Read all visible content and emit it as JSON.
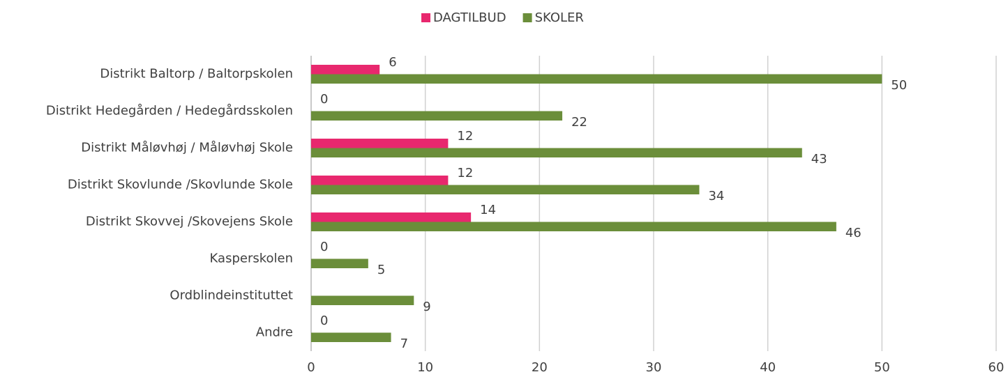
{
  "chart_data": {
    "type": "bar",
    "orientation": "horizontal",
    "categories": [
      "Distrikt Baltorp / Baltorpskolen",
      "Distrikt Hedegården / Hedegårdsskolen",
      "Distrikt Måløvhøj / Måløvhøj Skole",
      "Distrikt Skovlunde /Skovlunde Skole",
      "Distrikt Skovvej /Skovejens Skole",
      "Kasperskolen",
      "Ordblindeinstituttet",
      "Andre"
    ],
    "series": [
      {
        "name": "DAGTILBUD",
        "color": "#e8286e",
        "values": [
          6,
          0,
          12,
          12,
          14,
          0,
          null,
          0
        ]
      },
      {
        "name": "SKOLER",
        "color": "#6b8e3a",
        "values": [
          50,
          22,
          43,
          34,
          46,
          5,
          9,
          7
        ]
      }
    ],
    "xlim": [
      0,
      60
    ],
    "xticks": [
      0,
      10,
      20,
      30,
      40,
      50,
      60
    ],
    "grid": true,
    "legend": "top"
  }
}
